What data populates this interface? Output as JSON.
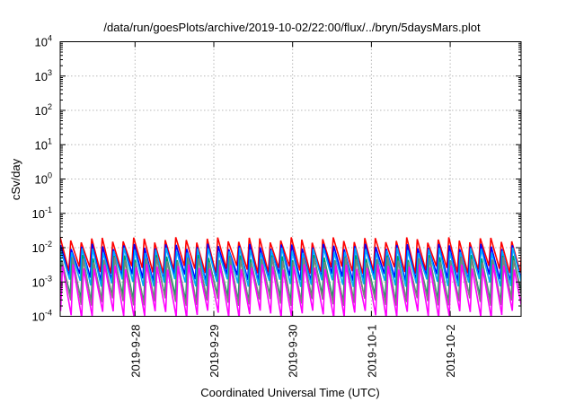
{
  "chart_data": {
    "type": "line",
    "title": "/data/run/goesPlots/archive/2019-10-02/22:00/flux/../bryn/5daysMars.plot",
    "xlabel": "Coordinated Universal Time (UTC)",
    "ylabel": "cSv/day",
    "yscale": "log",
    "ylim": [
      0.0001,
      10000
    ],
    "xlim": [
      -0.95,
      4.9
    ],
    "x_unit": "days since 2019-09-28 00:00 UTC",
    "grid": true,
    "y_ticks": [
      {
        "base": "10",
        "exp": "4",
        "value": 10000
      },
      {
        "base": "10",
        "exp": "3",
        "value": 1000
      },
      {
        "base": "10",
        "exp": "2",
        "value": 100
      },
      {
        "base": "10",
        "exp": "1",
        "value": 10
      },
      {
        "base": "10",
        "exp": "0",
        "value": 1
      },
      {
        "base": "10",
        "exp": "-1",
        "value": 0.1
      },
      {
        "base": "10",
        "exp": "-2",
        "value": 0.01
      },
      {
        "base": "10",
        "exp": "-3",
        "value": 0.001
      },
      {
        "base": "10",
        "exp": "-4",
        "value": 0.0001
      }
    ],
    "x_ticks": [
      {
        "label": "2019-9-28",
        "value": 0
      },
      {
        "label": "2019-9-29",
        "value": 1
      },
      {
        "label": "2019-9-30",
        "value": 2
      },
      {
        "label": "2019-10-1",
        "value": 3
      },
      {
        "label": "2019-10-2",
        "value": 4
      }
    ],
    "sawtooth_period_days": 0.1333,
    "series": [
      {
        "color": "#ff0000",
        "peak": 0.017,
        "trough": 0.0022
      },
      {
        "color": "#0000ff",
        "peak": 0.011,
        "trough": 0.0013
      },
      {
        "color": "#00aaff",
        "peak": 0.0085,
        "trough": 0.0009
      },
      {
        "color": "#00a060",
        "peak": 0.0052,
        "trough": 0.00032
      },
      {
        "color": "#808080",
        "peak": 0.0045,
        "trough": 0.00025
      },
      {
        "color": "#ff00ff",
        "peak": 0.0028,
        "trough": 0.00011
      }
    ]
  }
}
